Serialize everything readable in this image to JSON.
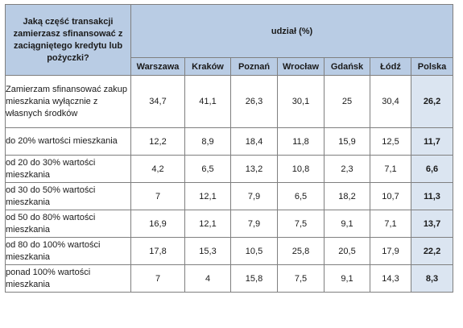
{
  "table": {
    "question": "Jaką część transakcji zamierzasz sfinansować z zaciągniętego kredytu lub pożyczki?",
    "unit_header": "udział (%)",
    "columns": [
      "Warszawa",
      "Kraków",
      "Poznań",
      "Wrocław",
      "Gdańsk",
      "Łódź",
      "Polska"
    ],
    "rows": [
      {
        "label": "Zamierzam sfinansować zakup mieszkania wyłącznie z własnych środków",
        "values": [
          "34,7",
          "41,1",
          "26,3",
          "30,1",
          "25",
          "30,4",
          "26,2"
        ]
      },
      {
        "label": "do 20% wartości mieszkania",
        "values": [
          "12,2",
          "8,9",
          "18,4",
          "11,8",
          "15,9",
          "12,5",
          "11,7"
        ]
      },
      {
        "label": "od 20 do 30% wartości mieszkania",
        "values": [
          "4,2",
          "6,5",
          "13,2",
          "10,8",
          "2,3",
          "7,1",
          "6,6"
        ]
      },
      {
        "label": "od 30 do 50% wartości mieszkania",
        "values": [
          "7",
          "12,1",
          "7,9",
          "6,5",
          "18,2",
          "10,7",
          "11,3"
        ]
      },
      {
        "label": "od 50 do 80% wartości mieszkania",
        "values": [
          "16,9",
          "12,1",
          "7,9",
          "7,5",
          "9,1",
          "7,1",
          "13,7"
        ]
      },
      {
        "label": "od 80 do 100% wartości mieszkania",
        "values": [
          "17,8",
          "15,3",
          "10,5",
          "25,8",
          "20,5",
          "17,9",
          "22,2"
        ]
      },
      {
        "label": "ponad 100% wartości mieszkania",
        "values": [
          "7",
          "4",
          "15,8",
          "7,5",
          "9,1",
          "14,3",
          "8,3"
        ]
      }
    ]
  }
}
